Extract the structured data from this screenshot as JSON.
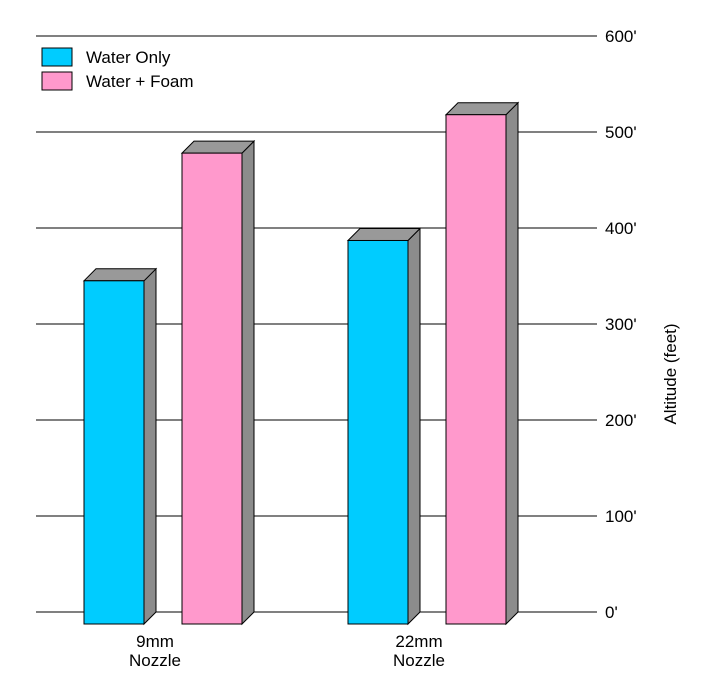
{
  "chart_data": {
    "type": "bar",
    "categories": [
      "9mm\nNozzle",
      "22mm\nNozzle"
    ],
    "series": [
      {
        "name": "Water Only",
        "values": [
          345,
          387
        ]
      },
      {
        "name": "Water + Foam",
        "values": [
          478,
          518
        ]
      }
    ],
    "ylabel": "Altitude (feet)",
    "ylim": [
      0,
      600
    ],
    "yticks": [
      0,
      100,
      200,
      300,
      400,
      500,
      600
    ],
    "ytick_labels": [
      "0'",
      "100'",
      "200'",
      "300'",
      "400'",
      "500'",
      "600'"
    ],
    "grid": true,
    "legend_position": "top-left",
    "y_axis_side": "right",
    "style_3d": true
  },
  "colors": {
    "series": [
      "#00ccff",
      "#ff99cc"
    ],
    "bar_side": "#8c8c8c",
    "bar_top": "#999999",
    "outline": "#000000",
    "grid": "#000000"
  }
}
